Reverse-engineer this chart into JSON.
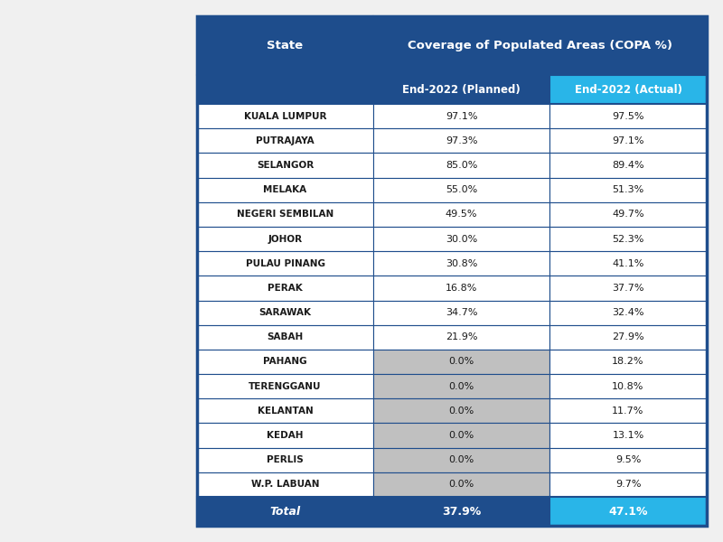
{
  "title_header": "Coverage of Populated Areas (COPA %)",
  "col1_header": "State",
  "col2_header": "End-2022 (Planned)",
  "col3_header": "End-2022 (Actual)",
  "states": [
    "KUALA LUMPUR",
    "PUTRAJAYA",
    "SELANGOR",
    "MELAKA",
    "NEGERI SEMBILAN",
    "JOHOR",
    "PULAU PINANG",
    "PERAK",
    "SARAWAK",
    "SABAH",
    "PAHANG",
    "TERENGGANU",
    "KELANTAN",
    "KEDAH",
    "PERLIS",
    "W.P. LABUAN"
  ],
  "planned": [
    "97.1%",
    "97.3%",
    "85.0%",
    "55.0%",
    "49.5%",
    "30.0%",
    "30.8%",
    "16.8%",
    "34.7%",
    "21.9%",
    "0.0%",
    "0.0%",
    "0.0%",
    "0.0%",
    "0.0%",
    "0.0%"
  ],
  "actual": [
    "97.5%",
    "97.1%",
    "89.4%",
    "51.3%",
    "49.7%",
    "52.3%",
    "41.1%",
    "37.7%",
    "32.4%",
    "27.9%",
    "18.2%",
    "10.8%",
    "11.7%",
    "13.1%",
    "9.5%",
    "9.7%"
  ],
  "total_planned": "37.9%",
  "total_actual": "47.1%",
  "header_bg": "#1e4d8c",
  "actual_subheader_bg": "#29b5e8",
  "row_bg_white": "#ffffff",
  "row_bg_gray": "#c0c0c0",
  "total_bg_blue": "#1e4d8c",
  "total_actual_bg": "#29b5e8",
  "header_text_color": "#ffffff",
  "row_text_dark": "#1a1a1a",
  "total_text_color": "#ffffff",
  "border_color": "#1e4d8c",
  "gray_planned_rows": [
    10,
    11,
    12,
    13,
    14,
    15
  ],
  "fig_bg": "#f0f0f0",
  "figsize": [
    8.0,
    6.0
  ],
  "dpi": 100
}
